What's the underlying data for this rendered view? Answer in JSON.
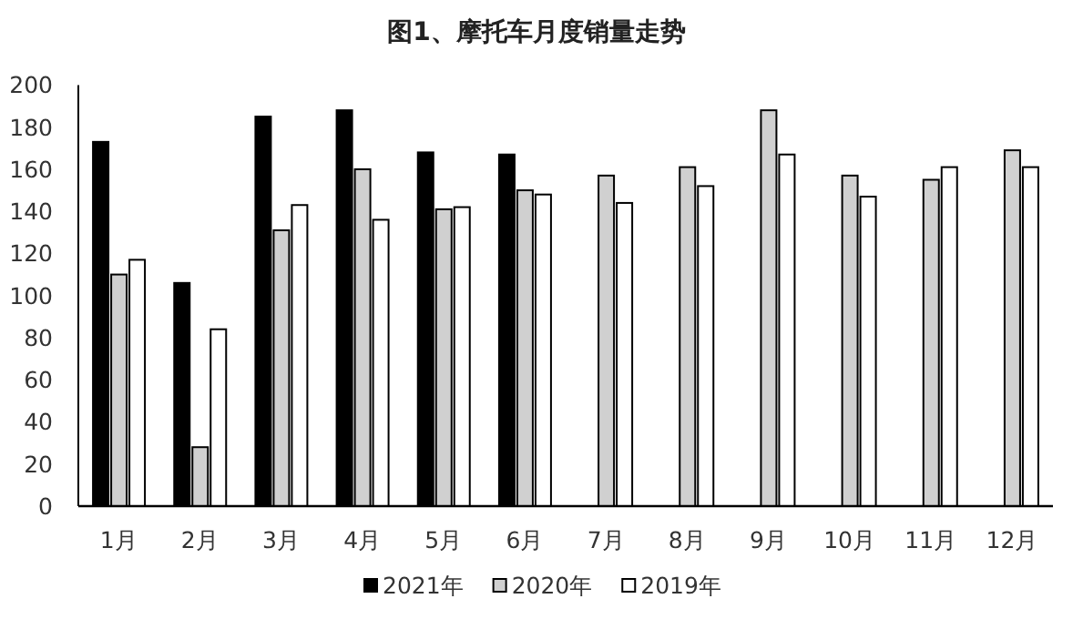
{
  "chart_data": {
    "type": "bar",
    "title": "图1、摩托车月度销量走势",
    "categories": [
      "1月",
      "2月",
      "3月",
      "4月",
      "5月",
      "6月",
      "7月",
      "8月",
      "9月",
      "10月",
      "11月",
      "12月"
    ],
    "series": [
      {
        "name": "2021年",
        "color": "#000000",
        "values": [
          173,
          106,
          185,
          188,
          168,
          167,
          null,
          null,
          null,
          null,
          null,
          null
        ]
      },
      {
        "name": "2020年",
        "color": "#d0d0d0",
        "values": [
          110,
          28,
          131,
          160,
          141,
          150,
          157,
          161,
          188,
          157,
          155,
          169
        ]
      },
      {
        "name": "2019年",
        "color": "#ffffff",
        "values": [
          117,
          84,
          143,
          136,
          142,
          148,
          144,
          152,
          167,
          147,
          161,
          161
        ]
      }
    ],
    "ylim": [
      0,
      200
    ],
    "yticks": [
      0,
      20,
      40,
      60,
      80,
      100,
      120,
      140,
      160,
      180,
      200
    ],
    "grid": false,
    "legend": "bottom"
  }
}
